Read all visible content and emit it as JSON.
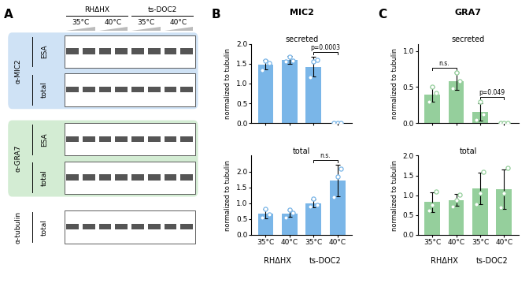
{
  "blot": {
    "panel": "A",
    "groups": [
      "RHΔHX",
      "ts-DOC2"
    ],
    "temperatures": [
      "35°C",
      "40°C",
      "35°C",
      "40°C"
    ],
    "antibodies": [
      {
        "name": "α-MIC2",
        "rows": [
          "ESA",
          "total"
        ],
        "color": "#cfe2f5"
      },
      {
        "name": "α-GRA7",
        "rows": [
          "ESA",
          "total"
        ],
        "color": "#d3ecd3"
      },
      {
        "name": "α-tubulin",
        "rows": [
          "total"
        ]
      }
    ]
  },
  "chart_data": [
    {
      "type": "bar",
      "panel": "B",
      "title": "MIC2",
      "subtitle": "secreted",
      "y_label": "normalized to tubulin",
      "categories": [
        null,
        null,
        null,
        null
      ],
      "tick_labels": "y",
      "values": [
        1.48,
        1.6,
        1.42,
        0.0
      ],
      "errors": [
        0.12,
        0.1,
        0.25,
        0.01
      ],
      "points": [
        [
          1.33,
          1.58,
          1.52
        ],
        [
          1.55,
          1.68,
          1.58
        ],
        [
          1.15,
          1.55,
          1.6
        ],
        [
          0.0,
          0.0,
          0.0
        ]
      ],
      "color": "#7ab6e8",
      "ylim": [
        0.0,
        2.0
      ],
      "yticks": [
        0.0,
        0.5,
        1.0,
        1.5,
        2.0
      ],
      "annotations": [
        {
          "text": "p=0.0003",
          "between": [
            2,
            3
          ]
        }
      ]
    },
    {
      "type": "bar",
      "subtitle": "total",
      "y_label": "normalized to tubulin",
      "categories": [
        "35°C",
        "40°C",
        "35°C",
        "40°C"
      ],
      "group_labels": [
        "RHΔHX",
        "ts-DOC2"
      ],
      "values": [
        0.68,
        0.68,
        1.0,
        1.72
      ],
      "errors": [
        0.15,
        0.12,
        0.12,
        0.5
      ],
      "points": [
        [
          0.55,
          0.82,
          0.65
        ],
        [
          0.55,
          0.8,
          0.7
        ],
        [
          0.9,
          1.15,
          0.95
        ],
        [
          1.2,
          1.85,
          2.1
        ]
      ],
      "color": "#7ab6e8",
      "ylim": [
        0.0,
        2.5
      ],
      "yticks": [
        0.0,
        0.5,
        1.0,
        1.5,
        2.0
      ],
      "annotations": [
        {
          "text": "n.s.",
          "between": [
            2,
            3
          ]
        }
      ]
    },
    {
      "type": "bar",
      "panel": "C",
      "title": "GRA7",
      "subtitle": "secreted",
      "y_label": "normalized to tubulin",
      "categories": [
        null,
        null,
        null,
        null
      ],
      "tick_labels": "y",
      "values": [
        0.4,
        0.58,
        0.16,
        0.0
      ],
      "errors": [
        0.1,
        0.12,
        0.12,
        0.01
      ],
      "points": [
        [
          0.3,
          0.5,
          0.42
        ],
        [
          0.48,
          0.7,
          0.58
        ],
        [
          0.05,
          0.3,
          0.12
        ],
        [
          0.0,
          0.0,
          0.0
        ]
      ],
      "color": "#95cf9c",
      "ylim": [
        0.0,
        1.1
      ],
      "yticks": [
        0.0,
        0.5,
        1.0
      ],
      "annotations": [
        {
          "text": "n.s.",
          "between": [
            0,
            1
          ]
        },
        {
          "text": "p=0.049",
          "between": [
            2,
            3
          ]
        }
      ]
    },
    {
      "type": "bar",
      "subtitle": "total",
      "y_label": "normalized to tubulin",
      "categories": [
        "35°C",
        "40°C",
        "35°C",
        "40°C"
      ],
      "group_labels": [
        "RHΔHX",
        "ts-DOC2"
      ],
      "values": [
        0.83,
        0.88,
        1.18,
        1.15
      ],
      "errors": [
        0.25,
        0.15,
        0.4,
        0.5
      ],
      "points": [
        [
          0.62,
          0.75,
          1.1
        ],
        [
          0.72,
          0.88,
          1.02
        ],
        [
          0.78,
          1.05,
          1.6
        ],
        [
          0.7,
          1.05,
          1.7
        ]
      ],
      "color": "#95cf9c",
      "ylim": [
        0.0,
        2.0
      ],
      "yticks": [
        0.0,
        0.5,
        1.0,
        1.5,
        2.0
      ]
    }
  ]
}
